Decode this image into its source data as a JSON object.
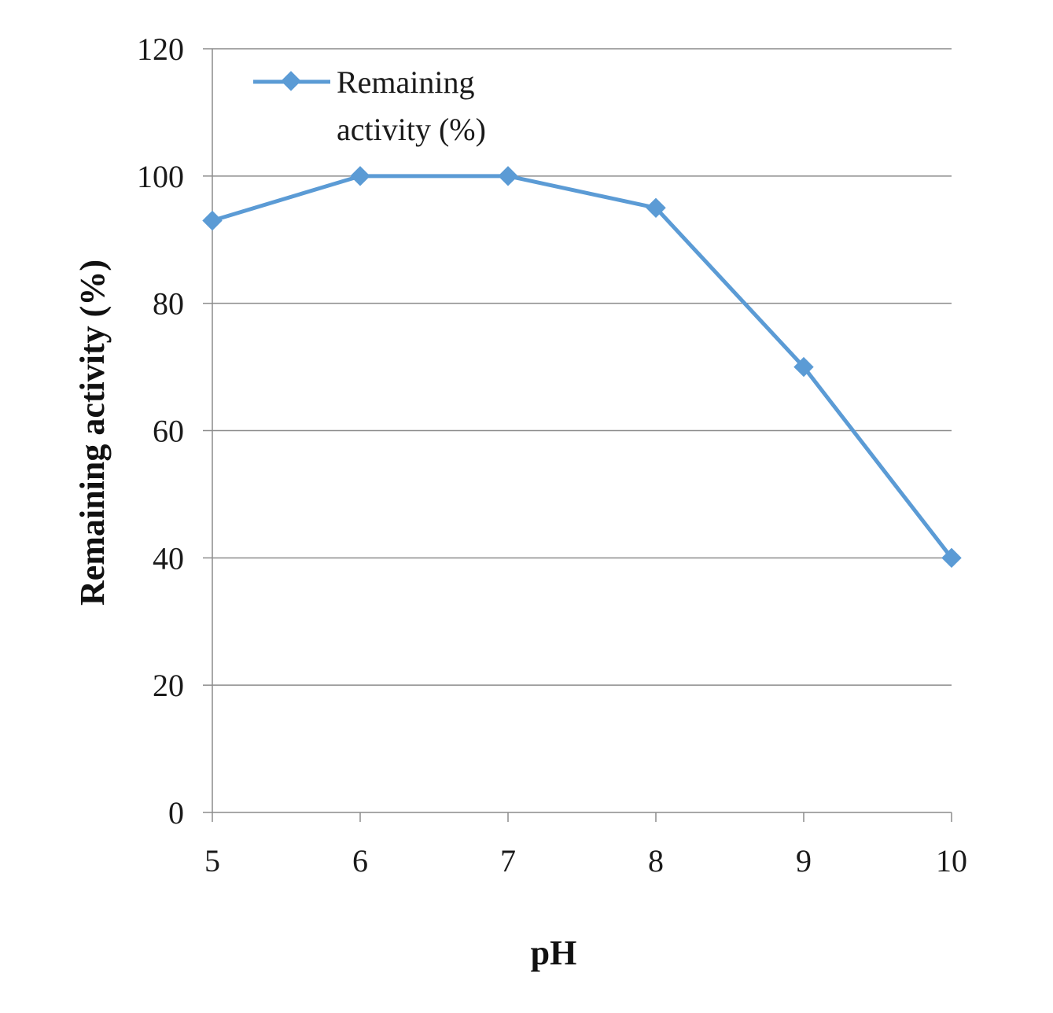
{
  "chart_data": {
    "type": "line",
    "x": [
      5,
      6,
      7,
      8,
      9,
      10
    ],
    "series": [
      {
        "name": "Remaining activity (%)",
        "values": [
          93,
          100,
          100,
          95,
          70,
          40
        ]
      }
    ],
    "xlabel": "pH",
    "ylabel": "Remaining  activity (%)",
    "xticks": [
      "5",
      "6",
      "7",
      "8",
      "9",
      "10"
    ],
    "yticks": [
      "0",
      "20",
      "40",
      "60",
      "80",
      "100",
      "120"
    ],
    "ylim": [
      0,
      120
    ],
    "grid": "horizontal",
    "legend": {
      "position": "top-left",
      "lines": [
        "Remaining",
        "activity (%)"
      ]
    },
    "colors": {
      "series": "#5b9bd5",
      "grid": "#8c8c8c",
      "axis": "#8c8c8c"
    }
  }
}
